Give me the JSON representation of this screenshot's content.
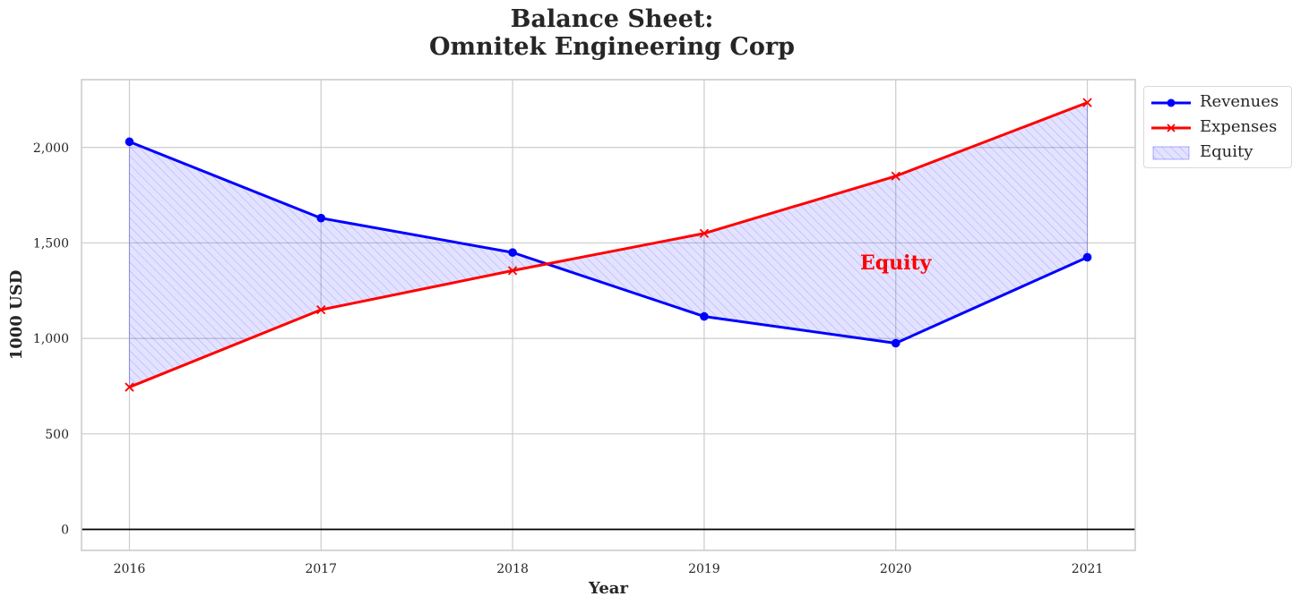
{
  "chart_data": {
    "type": "line",
    "title_lines": [
      "Balance Sheet:",
      "Omnitek Engineering Corp"
    ],
    "xlabel": "Year",
    "ylabel": "1000 USD",
    "x": [
      2016,
      2017,
      2018,
      2019,
      2020,
      2021
    ],
    "xtick_labels": [
      "2016",
      "2017",
      "2018",
      "2019",
      "2020",
      "2021"
    ],
    "ytick_values": [
      0,
      500,
      1000,
      1500,
      2000
    ],
    "ytick_labels": [
      "0",
      "500",
      "1,000",
      "1,500",
      "2,000"
    ],
    "xlim": [
      2015.75,
      2021.25
    ],
    "ylim": [
      -110,
      2355
    ],
    "grid": true,
    "legend_position": "outside-top-right",
    "series": [
      {
        "name": "Revenues",
        "values": [
          2030,
          1630,
          1450,
          1115,
          975,
          1425
        ],
        "color": "#0000ff",
        "marker": "circle"
      },
      {
        "name": "Expenses",
        "values": [
          745,
          1150,
          1355,
          1550,
          1850,
          2235
        ],
        "color": "#ff0000",
        "marker": "x"
      }
    ],
    "fill_between": {
      "name": "Equity",
      "between": [
        "Revenues",
        "Expenses"
      ],
      "color": "#0000ff",
      "hatch": "diagonal"
    },
    "annotation": {
      "text": "Equity",
      "x": 2020,
      "y": 1400,
      "color": "#ff0000"
    },
    "hline_at_zero": true
  }
}
